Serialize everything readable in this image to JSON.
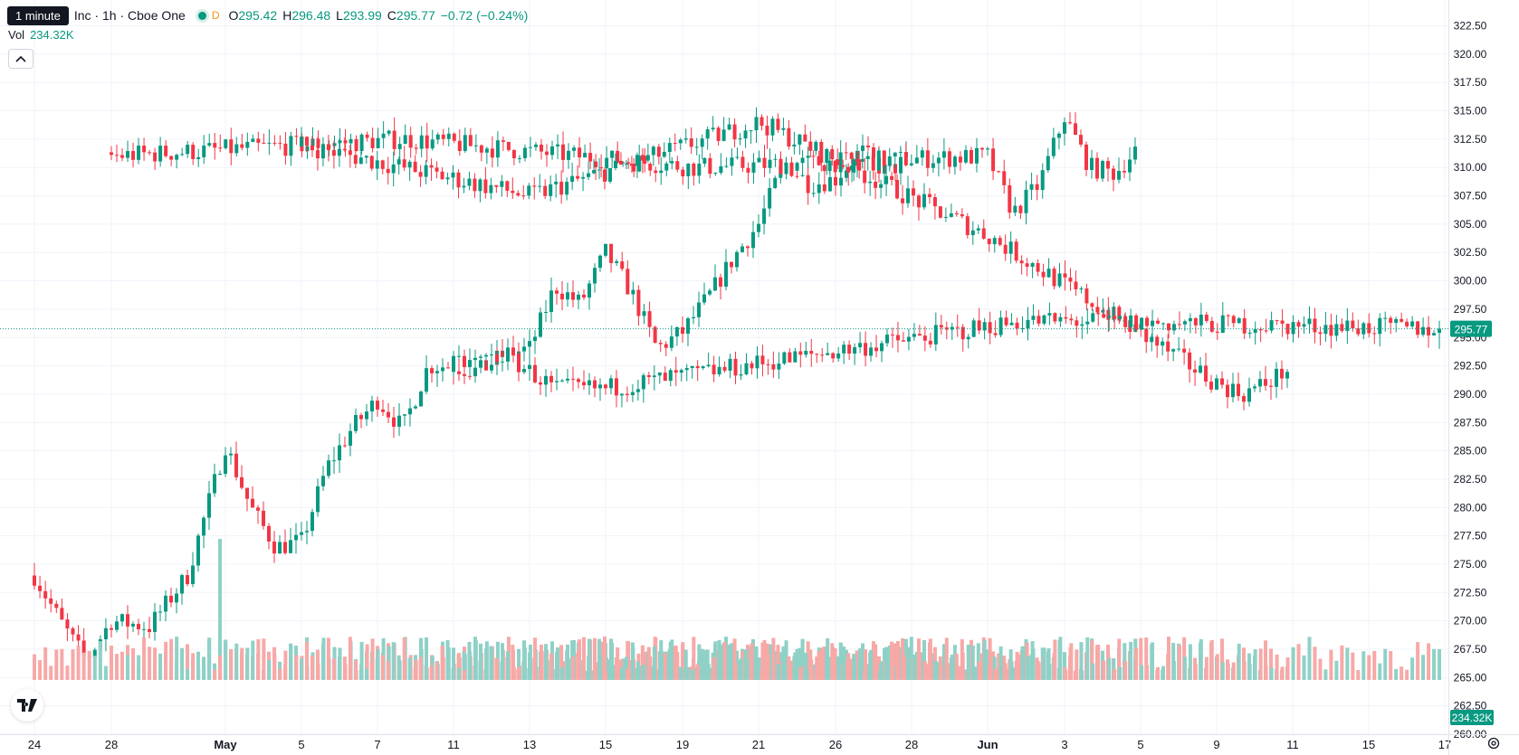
{
  "legend": {
    "tooltip": "1 minute",
    "symbol": "Inc · 1h · Cboe One",
    "session_badge": "D",
    "open_label": "O",
    "open": "295.42",
    "high_label": "H",
    "high": "296.48",
    "low_label": "L",
    "low": "293.99",
    "close_label": "C",
    "close": "295.77",
    "change": "−0.72 (−0.24%)"
  },
  "volume_legend": {
    "label": "Vol",
    "value": "234.32K"
  },
  "icons": {
    "collapse": "chevron-up-icon",
    "logo": "tradingview-logo",
    "settings": "gear-icon"
  },
  "colors": {
    "up": "#089981",
    "down": "#f23645",
    "vol_up": "#8fd1c7",
    "vol_down": "#f7a9a7",
    "grid": "#f0f3fa"
  },
  "chart_data": {
    "type": "candlestick",
    "ylim": [
      260.0,
      323.5
    ],
    "y_ticks": [
      "322.50",
      "320.00",
      "317.50",
      "315.00",
      "312.50",
      "310.00",
      "307.50",
      "305.00",
      "302.50",
      "300.00",
      "297.50",
      "295.00",
      "292.50",
      "290.00",
      "287.50",
      "285.00",
      "282.50",
      "280.00",
      "277.50",
      "275.00",
      "272.50",
      "270.00",
      "267.50",
      "265.00",
      "262.50",
      "260.00"
    ],
    "x_ticks": [
      "24",
      "28",
      "May",
      "5",
      "7",
      "11",
      "13",
      "15",
      "19",
      "21",
      "26",
      "28",
      "Jun",
      "3",
      "5",
      "9",
      "11",
      "15",
      "17"
    ],
    "last_price_label": "295.77",
    "last_volume_label": "234.32K",
    "segments": [
      {
        "from": "24",
        "to": "28",
        "points": [
          [
            274.0,
            0
          ],
          [
            270.0,
            0
          ],
          [
            266.5,
            0
          ],
          [
            270.0,
            0
          ]
        ]
      },
      {
        "from": "28",
        "to": "May",
        "points": [
          [
            270.0,
            0
          ],
          [
            269.5,
            0
          ],
          [
            274.0,
            0
          ],
          [
            285.5,
            6
          ]
        ]
      },
      {
        "from": "May",
        "to": "5",
        "points": [
          [
            285.5,
            0
          ],
          [
            280.0,
            0
          ],
          [
            276.5,
            0
          ],
          [
            277.0,
            0
          ]
        ]
      },
      {
        "from": "5",
        "to": "7",
        "points": [
          [
            277.0,
            0
          ],
          [
            283.5,
            0
          ],
          [
            287.0,
            0
          ],
          [
            289.5,
            0
          ]
        ]
      },
      {
        "from": "7",
        "to": "11",
        "points": [
          [
            289.5,
            0
          ],
          [
            287.0,
            0
          ],
          [
            292.5,
            0
          ],
          [
            292.5,
            0
          ]
        ]
      },
      {
        "from": "11",
        "to": "13",
        "points": [
          [
            292.5,
            0
          ],
          [
            292.0,
            0
          ],
          [
            293.5,
            0
          ],
          [
            294.0,
            0
          ]
        ]
      },
      {
        "from": "13",
        "to": "15",
        "points": [
          [
            294.0,
            0
          ],
          [
            299.5,
            0
          ],
          [
            298.0,
            0
          ],
          [
            302.5,
            0
          ]
        ]
      },
      {
        "from": "15",
        "to": "19",
        "points": [
          [
            302.5,
            0
          ],
          [
            299.0,
            0
          ],
          [
            294.0,
            0
          ],
          [
            295.5,
            0
          ]
        ]
      },
      {
        "from": "19",
        "to": "21",
        "points": [
          [
            295.5,
            0
          ],
          [
            298.5,
            0
          ],
          [
            302.0,
            0
          ],
          [
            305.0,
            0
          ]
        ]
      },
      {
        "from": "21",
        "to": "26",
        "points": [
          [
            305.0,
            0
          ],
          [
            310.5,
            0
          ],
          [
            308.5,
            0
          ],
          [
            309.0,
            0
          ]
        ]
      },
      {
        "from": "26",
        "to": "28",
        "points": [
          [
            309.0,
            0
          ],
          [
            311.5,
            0
          ],
          [
            309.5,
            0
          ],
          [
            311.0,
            0
          ]
        ]
      },
      {
        "from": "28",
        "to": "Jun",
        "points": [
          [
            311.0,
            0
          ],
          [
            312.5,
            0
          ],
          [
            310.0,
            0
          ],
          [
            311.0,
            0
          ]
        ]
      },
      {
        "from": "Jun",
        "to": "3",
        "points": [
          [
            311.0,
            0
          ],
          [
            306.0,
            0
          ],
          [
            308.5,
            0
          ],
          [
            314.5,
            0
          ]
        ]
      },
      {
        "from": "3",
        "to": "5",
        "points": [
          [
            314.5,
            0
          ],
          [
            310.0,
            0
          ],
          [
            309.5,
            0
          ],
          [
            312.0,
            0
          ]
        ]
      },
      {
        "from": "5",
        "to": "9",
        "points": [
          [
            312.0,
            0
          ],
          [
            307.5,
            0
          ],
          [
            314.0,
            0
          ],
          [
            304.0,
            0
          ],
          [
            291.0,
            0
          ]
        ]
      },
      {
        "from": "9",
        "to": "11",
        "points": [
          [
            291.0,
            0
          ],
          [
            290.0,
            0
          ],
          [
            291.0,
            0
          ],
          [
            292.5,
            0
          ]
        ]
      },
      {
        "from": "11",
        "to": "15",
        "points": [
          [
            292.5,
            0
          ],
          [
            293.5,
            0
          ],
          [
            290.5,
            0
          ],
          [
            290.5,
            0
          ]
        ]
      },
      {
        "from": "15",
        "to": "17",
        "points": [
          [
            290.5,
            0
          ],
          [
            296.5,
            0
          ],
          [
            295.77,
            0
          ]
        ]
      }
    ]
  }
}
